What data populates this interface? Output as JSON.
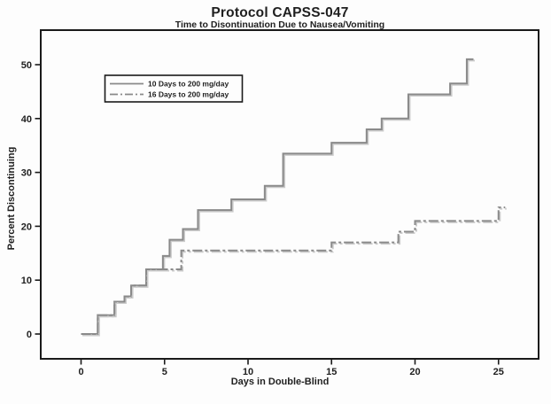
{
  "chart_data": {
    "type": "line",
    "subtype": "step-survival",
    "title": "Protocol CAPSS-047",
    "subtitle": "Time to Disontinuation Due to Nausea/Vomiting",
    "xlabel": "Days in Double-Blind",
    "ylabel": "Percent Discontinuing",
    "xlim": [
      0,
      25
    ],
    "ylim": [
      0,
      50
    ],
    "x_ticks": [
      0,
      5,
      10,
      15,
      20,
      25
    ],
    "y_ticks": [
      0,
      10,
      20,
      30,
      40,
      50
    ],
    "grid": false,
    "legend_position": "upper-left-inside",
    "colors": {
      "line": "#8a8a8a",
      "line_shadow": "#cccccc",
      "frame": "#1a1a1a",
      "text": "#1f1f1f"
    },
    "series": [
      {
        "name": "10 Days to 200 mg/day",
        "line_style": "solid",
        "end_day": 23.5,
        "steps": [
          [
            0,
            0
          ],
          [
            1,
            3.5
          ],
          [
            2,
            6
          ],
          [
            2.6,
            7
          ],
          [
            3,
            9
          ],
          [
            3.9,
            12
          ],
          [
            4.9,
            14.5
          ],
          [
            5.3,
            17.5
          ],
          [
            6.1,
            19.5
          ],
          [
            7,
            23
          ],
          [
            9,
            25
          ],
          [
            11,
            27.5
          ],
          [
            12.1,
            33.5
          ],
          [
            15,
            35.5
          ],
          [
            17.1,
            38
          ],
          [
            18,
            40
          ],
          [
            19.6,
            44.5
          ],
          [
            22.1,
            46.5
          ],
          [
            23.1,
            51
          ]
        ]
      },
      {
        "name": "16 Days to 200 mg/day",
        "line_style": "dash-dot",
        "end_day": 25.4,
        "steps": [
          [
            0,
            0
          ],
          [
            1,
            3.5
          ],
          [
            2,
            6
          ],
          [
            2.6,
            7
          ],
          [
            3,
            9
          ],
          [
            3.9,
            12
          ],
          [
            6,
            15.5
          ],
          [
            15,
            17
          ],
          [
            19,
            19
          ],
          [
            20,
            21
          ],
          [
            25,
            23.5
          ]
        ]
      }
    ]
  }
}
